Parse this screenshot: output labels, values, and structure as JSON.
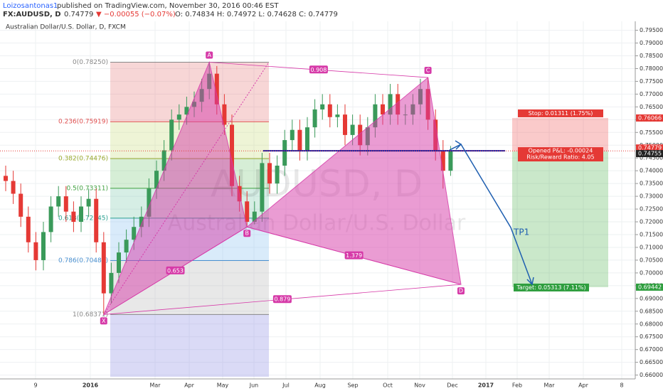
{
  "header": {
    "author": "Loizosantonas1",
    "published": "published on TradingView.com, November 30, 2016 00:46 EST",
    "symbol": "FX:AUDUSD, D",
    "last": "0.74779",
    "change": "▼ −0.00055 (−0.07%)",
    "ohlc": "O: 0.74834 H: 0.74972 L: 0.74628 C: 0.74779"
  },
  "chart_data": {
    "type": "candlestick",
    "title": "Australian Dollar/U.S. Dollar, D, FXCM",
    "watermark": "AUDUSD, D",
    "watermark_sub": "Australian Dollar/U.S. Dollar",
    "up_color": "#3a9a5a",
    "down_color": "#e53935",
    "grid": true,
    "x_labels": [
      "9",
      "2016",
      "Mar",
      "Apr",
      "May",
      "Jun",
      "Jul",
      "Aug",
      "Sep",
      "Oct",
      "Nov",
      "Dec",
      "2017",
      "Feb",
      "Mar",
      "Apr",
      "8"
    ],
    "ylim": [
      0.6585,
      0.7985
    ],
    "yticks": [
      {
        "value": 0.795,
        "label": "0.79500"
      },
      {
        "value": 0.79,
        "label": "0.79000"
      },
      {
        "value": 0.785,
        "label": "0.78500"
      },
      {
        "value": 0.78,
        "label": "0.78000"
      },
      {
        "value": 0.775,
        "label": "0.77500"
      },
      {
        "value": 0.77,
        "label": "0.77000"
      },
      {
        "value": 0.765,
        "label": "0.76500"
      },
      {
        "value": 0.76,
        "label": "0.76000"
      },
      {
        "value": 0.755,
        "label": "0.75500"
      },
      {
        "value": 0.75,
        "label": "0.75000"
      },
      {
        "value": 0.745,
        "label": "0.74500"
      },
      {
        "value": 0.74,
        "label": "0.74000"
      },
      {
        "value": 0.735,
        "label": "0.73500"
      },
      {
        "value": 0.73,
        "label": "0.73000"
      },
      {
        "value": 0.725,
        "label": "0.72500"
      },
      {
        "value": 0.72,
        "label": "0.72000"
      },
      {
        "value": 0.715,
        "label": "0.71500"
      },
      {
        "value": 0.71,
        "label": "0.71000"
      },
      {
        "value": 0.705,
        "label": "0.70500"
      },
      {
        "value": 0.7,
        "label": "0.70000"
      },
      {
        "value": 0.695,
        "label": "0.69500"
      },
      {
        "value": 0.69,
        "label": "0.69000"
      },
      {
        "value": 0.685,
        "label": "0.68500"
      },
      {
        "value": 0.68,
        "label": "0.68000"
      },
      {
        "value": 0.675,
        "label": "0.67500"
      },
      {
        "value": 0.67,
        "label": "0.67000"
      },
      {
        "value": 0.665,
        "label": "0.66500"
      },
      {
        "value": 0.66,
        "label": "0.66000"
      }
    ],
    "open": [
      0.738,
      0.736,
      0.731,
      0.722,
      0.712,
      0.705,
      0.716,
      0.726,
      0.73,
      0.724,
      0.72,
      0.726,
      0.729,
      0.712,
      0.692,
      0.7,
      0.708,
      0.713,
      0.718,
      0.722,
      0.733,
      0.74,
      0.748,
      0.76,
      0.762,
      0.765,
      0.767,
      0.772,
      0.778,
      0.766,
      0.758,
      0.734,
      0.728,
      0.72,
      0.724,
      0.743,
      0.735,
      0.742,
      0.752,
      0.756,
      0.748,
      0.757,
      0.764,
      0.766,
      0.761,
      0.762,
      0.754,
      0.758,
      0.75,
      0.757,
      0.766,
      0.762,
      0.77,
      0.762,
      0.762,
      0.766,
      0.772,
      0.76,
      0.748,
      0.74
    ],
    "high": [
      0.742,
      0.74,
      0.735,
      0.726,
      0.716,
      0.72,
      0.73,
      0.734,
      0.734,
      0.728,
      0.73,
      0.733,
      0.733,
      0.716,
      0.704,
      0.712,
      0.717,
      0.722,
      0.726,
      0.737,
      0.744,
      0.752,
      0.764,
      0.766,
      0.769,
      0.771,
      0.776,
      0.7825,
      0.781,
      0.77,
      0.762,
      0.738,
      0.732,
      0.728,
      0.747,
      0.747,
      0.746,
      0.756,
      0.76,
      0.76,
      0.761,
      0.768,
      0.77,
      0.77,
      0.766,
      0.766,
      0.762,
      0.762,
      0.761,
      0.77,
      0.77,
      0.774,
      0.774,
      0.766,
      0.77,
      0.776,
      0.7765,
      0.764,
      0.752,
      0.7497
    ],
    "low": [
      0.732,
      0.727,
      0.718,
      0.708,
      0.701,
      0.701,
      0.712,
      0.722,
      0.72,
      0.716,
      0.716,
      0.722,
      0.708,
      0.68371,
      0.688,
      0.696,
      0.704,
      0.709,
      0.714,
      0.718,
      0.729,
      0.736,
      0.744,
      0.756,
      0.758,
      0.761,
      0.763,
      0.768,
      0.762,
      0.754,
      0.73,
      0.724,
      0.718,
      0.719,
      0.72,
      0.731,
      0.731,
      0.738,
      0.748,
      0.744,
      0.744,
      0.753,
      0.76,
      0.757,
      0.757,
      0.75,
      0.75,
      0.746,
      0.746,
      0.753,
      0.758,
      0.758,
      0.758,
      0.758,
      0.758,
      0.762,
      0.756,
      0.744,
      0.733,
      0.738
    ],
    "close": [
      0.736,
      0.731,
      0.722,
      0.712,
      0.705,
      0.716,
      0.726,
      0.73,
      0.724,
      0.72,
      0.726,
      0.729,
      0.712,
      0.692,
      0.7,
      0.708,
      0.713,
      0.718,
      0.722,
      0.733,
      0.74,
      0.748,
      0.76,
      0.762,
      0.765,
      0.767,
      0.772,
      0.778,
      0.766,
      0.758,
      0.734,
      0.728,
      0.72,
      0.724,
      0.743,
      0.735,
      0.742,
      0.752,
      0.756,
      0.748,
      0.757,
      0.764,
      0.766,
      0.761,
      0.762,
      0.754,
      0.758,
      0.75,
      0.757,
      0.766,
      0.762,
      0.77,
      0.762,
      0.762,
      0.766,
      0.772,
      0.76,
      0.748,
      0.74,
      0.748
    ],
    "fib": {
      "levels": [
        {
          "price": 0.7825,
          "label": "0(0.78250)",
          "color": "#888888"
        },
        {
          "price": 0.75919,
          "label": "0.236(0.75919)",
          "color": "#e05050"
        },
        {
          "price": 0.74476,
          "label": "0.382(0.74476)",
          "color": "#9aaa30"
        },
        {
          "price": 0.73311,
          "label": "0.5(0.73311)",
          "color": "#40a040"
        },
        {
          "price": 0.72145,
          "label": "0.618(0.72145)",
          "color": "#2aa090"
        },
        {
          "price": 0.70485,
          "label": "0.786(0.70485)",
          "color": "#4a90d0"
        },
        {
          "price": 0.68371,
          "label": "1(0.68371)",
          "color": "#888888"
        }
      ],
      "band_colors": [
        "rgba(230,120,120,0.3)",
        "rgba(200,220,120,0.3)",
        "rgba(120,200,120,0.3)",
        "rgba(120,200,170,0.3)",
        "rgba(130,190,240,0.3)",
        "rgba(180,180,180,0.3)",
        "rgba(150,150,230,0.35)"
      ]
    },
    "pattern": {
      "color": "#d63aa8",
      "points": [
        {
          "label": "X",
          "price": 0.68371
        },
        {
          "label": "A",
          "price": 0.7825
        },
        {
          "label": "B",
          "price": 0.718
        },
        {
          "label": "C",
          "price": 0.7765
        },
        {
          "label": "D",
          "price": 0.6955
        }
      ],
      "ratios": [
        0.653,
        0.908,
        1.379,
        0.879
      ]
    },
    "level_line": 0.7478,
    "position": {
      "stop": 0.76066,
      "entry": 0.74755,
      "target": 0.69442,
      "stop_text": "Stop: 0.01311 (1.75%)",
      "pnl_text": "Opened P&L: -0.00024",
      "rr_text": "Risk/Reward Ratio: 4.05",
      "target_text": "Target: 0.05313 (7.11%)"
    },
    "last_price": 0.74779,
    "tp_label": "TP1"
  }
}
